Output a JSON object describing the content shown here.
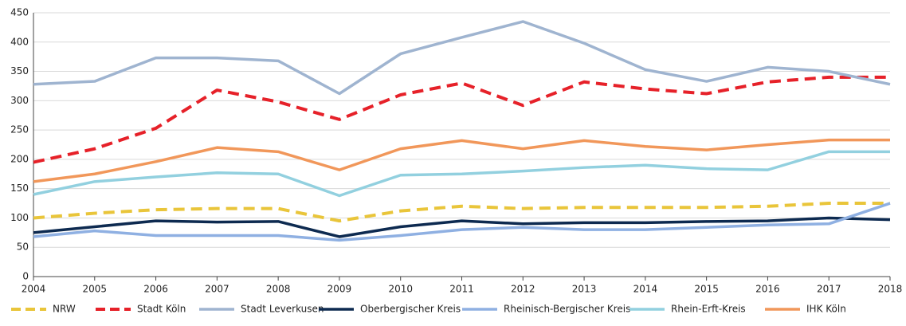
{
  "chart_data": {
    "type": "line",
    "x": [
      2004,
      2005,
      2006,
      2007,
      2008,
      2009,
      2010,
      2011,
      2012,
      2013,
      2014,
      2015,
      2016,
      2017,
      2018
    ],
    "xlim": [
      2004,
      2018
    ],
    "xticks": [
      2004,
      2005,
      2006,
      2007,
      2008,
      2009,
      2010,
      2011,
      2012,
      2013,
      2014,
      2015,
      2016,
      2017,
      2018
    ],
    "ylim": [
      0,
      450
    ],
    "yticks": [
      0,
      50,
      100,
      150,
      200,
      250,
      300,
      350,
      400,
      450
    ],
    "grid": true,
    "legend": "bottom",
    "series": [
      {
        "name": "NRW",
        "color": "#e9c53a",
        "dashed": true,
        "values": [
          100,
          108,
          114,
          116,
          116,
          95,
          112,
          120,
          116,
          118,
          118,
          118,
          120,
          125,
          125
        ]
      },
      {
        "name": "Stadt Köln",
        "color": "#e62129",
        "dashed": true,
        "values": [
          195,
          218,
          253,
          318,
          298,
          268,
          310,
          330,
          292,
          332,
          320,
          312,
          332,
          340,
          340
        ]
      },
      {
        "name": "Stadt Leverkusen",
        "color": "#9fb4d0",
        "dashed": false,
        "values": [
          328,
          333,
          373,
          373,
          368,
          312,
          380,
          408,
          435,
          398,
          353,
          333,
          357,
          350,
          328
        ]
      },
      {
        "name": "Oberbergischer Kreis",
        "color": "#0d2a50",
        "dashed": false,
        "values": [
          75,
          85,
          95,
          93,
          94,
          68,
          85,
          95,
          90,
          92,
          92,
          94,
          95,
          100,
          97
        ]
      },
      {
        "name": "Rheinisch-Bergischer Kreis",
        "color": "#8fb0e2",
        "dashed": false,
        "values": [
          68,
          78,
          70,
          70,
          70,
          62,
          70,
          80,
          84,
          80,
          80,
          84,
          88,
          90,
          125
        ]
      },
      {
        "name": "Rhein-Erft-Kreis",
        "color": "#92d0df",
        "dashed": false,
        "values": [
          140,
          162,
          170,
          177,
          175,
          138,
          173,
          175,
          180,
          186,
          190,
          184,
          182,
          213,
          213
        ]
      },
      {
        "name": "IHK Köln",
        "color": "#f1975a",
        "dashed": false,
        "values": [
          162,
          175,
          196,
          220,
          213,
          182,
          218,
          232,
          218,
          232,
          222,
          216,
          225,
          233,
          233
        ]
      }
    ]
  }
}
